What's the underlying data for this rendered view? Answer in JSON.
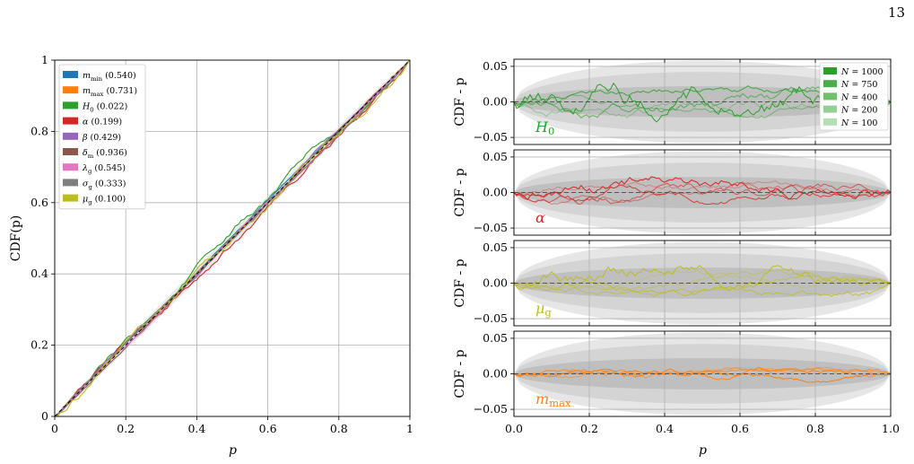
{
  "page_number": "13",
  "colors": {
    "m_min": "#1f77b4",
    "m_max": "#ff7f0e",
    "H0": "#2ca02c",
    "alpha": "#d62728",
    "beta": "#9467bd",
    "delta_m": "#8c564b",
    "lambda_g": "#e377c2",
    "sigma_g": "#7f7f7f",
    "mu_g": "#bcbd22"
  },
  "chart_data": [
    {
      "type": "line",
      "panel": "left",
      "xlabel": "p",
      "ylabel": "CDF(p)",
      "xlim": [
        0,
        1
      ],
      "ylim": [
        0,
        1
      ],
      "xticks": [
        "0",
        "0.2",
        "0.4",
        "0.6",
        "0.8",
        "1"
      ],
      "yticks": [
        "0",
        "0.2",
        "0.4",
        "0.6",
        "0.8",
        "1"
      ],
      "grid": true,
      "legend_placement": "top-left",
      "diagonal_reference": "dashed",
      "series": [
        {
          "key": "m_min",
          "name": "m_min",
          "sub": "min",
          "sym": "m",
          "value": "(0.540)",
          "max_dev": 0.01
        },
        {
          "key": "m_max",
          "name": "m_max",
          "sub": "max",
          "sym": "m",
          "value": "(0.731)",
          "max_dev": 0.012
        },
        {
          "key": "H0",
          "name": "H_0",
          "sub": "0",
          "sym": "H",
          "value": "(0.022)",
          "max_dev": 0.03
        },
        {
          "key": "alpha",
          "name": "α",
          "sub": "",
          "sym": "α",
          "value": "(0.199)",
          "max_dev": 0.022
        },
        {
          "key": "beta",
          "name": "β",
          "sub": "",
          "sym": "β",
          "value": "(0.429)",
          "max_dev": 0.012
        },
        {
          "key": "delta_m",
          "name": "δ_m",
          "sub": "m",
          "sym": "δ",
          "value": "(0.936)",
          "max_dev": 0.008
        },
        {
          "key": "lambda_g",
          "name": "λ_g",
          "sub": "g",
          "sym": "λ",
          "value": "(0.545)",
          "max_dev": 0.012
        },
        {
          "key": "sigma_g",
          "name": "σ_g",
          "sub": "g",
          "sym": "σ",
          "value": "(0.333)",
          "max_dev": 0.012
        },
        {
          "key": "mu_g",
          "name": "μ_g",
          "sub": "g",
          "sym": "μ",
          "value": "(0.100)",
          "max_dev": 0.025
        }
      ]
    },
    {
      "type": "line",
      "panel": "right",
      "xlabel": "p",
      "ylabel": "CDF - p",
      "xlim": [
        0,
        1
      ],
      "ylim": [
        -0.06,
        0.06
      ],
      "xticks": [
        "0.0",
        "0.2",
        "0.4",
        "0.6",
        "0.8",
        "1.0"
      ],
      "yticks": [
        "−0.05",
        "0.00",
        "0.05"
      ],
      "grid": true,
      "legend_placement": "top-right",
      "legend": [
        "N = 1000",
        "N = 750",
        "N = 400",
        "N = 200",
        "N = 100"
      ],
      "bands": "shaded sampling uncertainty for N = 1000 / 100",
      "subplots": [
        {
          "key": "H0",
          "label_sym": "H",
          "label_sub": "0",
          "max_dev": 0.03
        },
        {
          "key": "alpha",
          "label_sym": "α",
          "label_sub": "",
          "max_dev": 0.022
        },
        {
          "key": "mu_g",
          "label_sym": "μ",
          "label_sub": "g",
          "max_dev": 0.025
        },
        {
          "key": "m_max",
          "label_sym": "m",
          "label_sub": "max",
          "max_dev": 0.012
        }
      ]
    }
  ]
}
